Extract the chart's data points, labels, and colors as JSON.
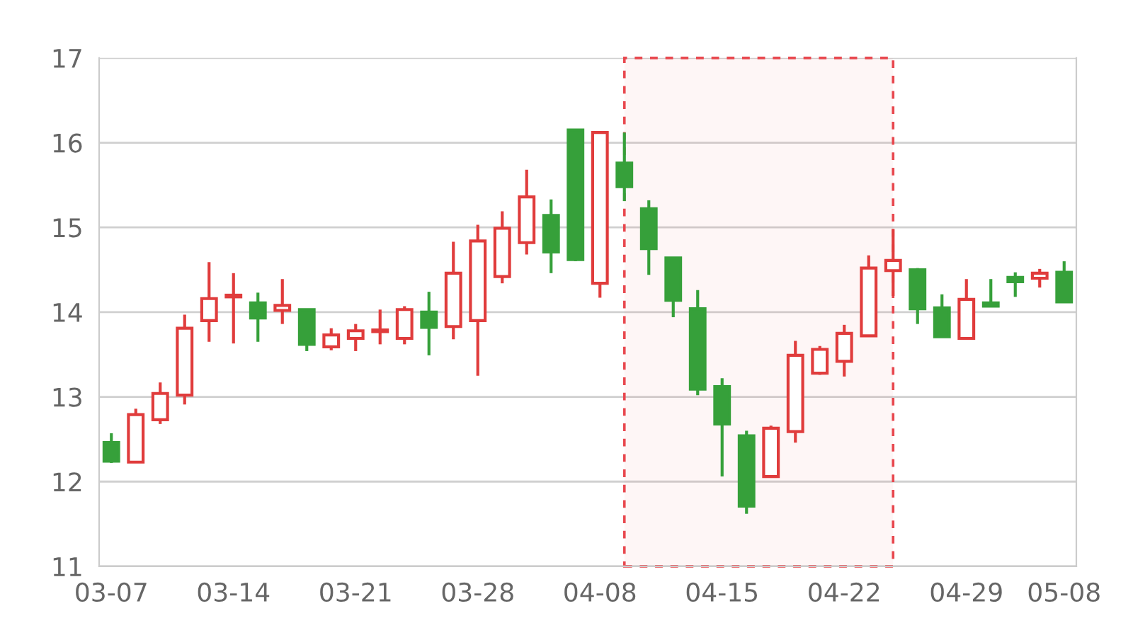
{
  "chart_data": {
    "type": "candlestick",
    "categories": [
      "03-07",
      null,
      null,
      null,
      null,
      "03-14",
      null,
      null,
      null,
      null,
      "03-21",
      null,
      null,
      null,
      null,
      "03-28",
      null,
      null,
      null,
      null,
      "04-08",
      null,
      null,
      null,
      null,
      "04-15",
      null,
      null,
      null,
      null,
      "04-22",
      null,
      null,
      null,
      null,
      "04-29",
      null,
      null,
      null,
      "05-08"
    ],
    "ohlc": [
      [
        12.46,
        12.57,
        12.22,
        12.24
      ],
      [
        12.23,
        12.86,
        12.23,
        12.79
      ],
      [
        12.73,
        13.17,
        12.68,
        13.04
      ],
      [
        13.02,
        13.97,
        12.91,
        13.81
      ],
      [
        13.9,
        14.59,
        13.65,
        14.16
      ],
      [
        14.18,
        14.46,
        13.63,
        14.2
      ],
      [
        14.11,
        14.23,
        13.65,
        13.93
      ],
      [
        14.02,
        14.39,
        13.86,
        14.08
      ],
      [
        14.03,
        14.03,
        13.54,
        13.62
      ],
      [
        13.59,
        13.81,
        13.55,
        13.73
      ],
      [
        13.69,
        13.86,
        13.54,
        13.78
      ],
      [
        13.77,
        14.03,
        13.62,
        13.79
      ],
      [
        13.69,
        14.07,
        13.62,
        14.03
      ],
      [
        14.0,
        14.24,
        13.49,
        13.82
      ],
      [
        13.83,
        14.83,
        13.68,
        14.46
      ],
      [
        13.9,
        15.03,
        13.25,
        14.84
      ],
      [
        14.42,
        15.19,
        14.34,
        14.99
      ],
      [
        14.82,
        15.68,
        14.68,
        15.36
      ],
      [
        15.14,
        15.33,
        14.46,
        14.71
      ],
      [
        16.15,
        16.15,
        14.6,
        14.62
      ],
      [
        14.34,
        16.12,
        14.17,
        16.12
      ],
      [
        15.76,
        16.12,
        15.31,
        15.48
      ],
      [
        15.22,
        15.32,
        14.44,
        14.75
      ],
      [
        14.64,
        14.64,
        13.94,
        14.14
      ],
      [
        14.04,
        14.26,
        13.02,
        13.09
      ],
      [
        13.12,
        13.22,
        12.06,
        12.68
      ],
      [
        12.54,
        12.6,
        11.62,
        11.71
      ],
      [
        12.06,
        12.66,
        12.06,
        12.63
      ],
      [
        12.59,
        13.66,
        12.46,
        13.49
      ],
      [
        13.28,
        13.6,
        13.26,
        13.56
      ],
      [
        13.42,
        13.85,
        13.24,
        13.75
      ],
      [
        13.72,
        14.67,
        13.72,
        14.52
      ],
      [
        14.49,
        14.98,
        14.19,
        14.61
      ],
      [
        14.5,
        14.52,
        13.86,
        14.04
      ],
      [
        14.05,
        14.21,
        13.7,
        13.71
      ],
      [
        13.69,
        14.39,
        13.68,
        14.15
      ],
      [
        14.11,
        14.39,
        14.07,
        14.07
      ],
      [
        14.41,
        14.47,
        14.18,
        14.36
      ],
      [
        14.4,
        14.51,
        14.29,
        14.46
      ],
      [
        14.47,
        14.6,
        14.11,
        14.12
      ]
    ],
    "colors": [
      "#36a03a",
      "#e03c3c",
      "#e03c3c",
      "#e03c3c",
      "#e03c3c",
      "#e03c3c",
      "#36a03a",
      "#e03c3c",
      "#36a03a",
      "#e03c3c",
      "#e03c3c",
      "#e03c3c",
      "#e03c3c",
      "#36a03a",
      "#e03c3c",
      "#e03c3c",
      "#e03c3c",
      "#e03c3c",
      "#36a03a",
      "#36a03a",
      "#e03c3c",
      "#36a03a",
      "#36a03a",
      "#36a03a",
      "#36a03a",
      "#36a03a",
      "#36a03a",
      "#e03c3c",
      "#e03c3c",
      "#e03c3c",
      "#e03c3c",
      "#e03c3c",
      "#e03c3c",
      "#36a03a",
      "#36a03a",
      "#e03c3c",
      "#36a03a",
      "#36a03a",
      "#e03c3c",
      "#36a03a"
    ],
    "ylim": [
      11,
      17
    ],
    "yticks": [
      11,
      12,
      13,
      14,
      15,
      16,
      17
    ],
    "grid": "y"
  }
}
